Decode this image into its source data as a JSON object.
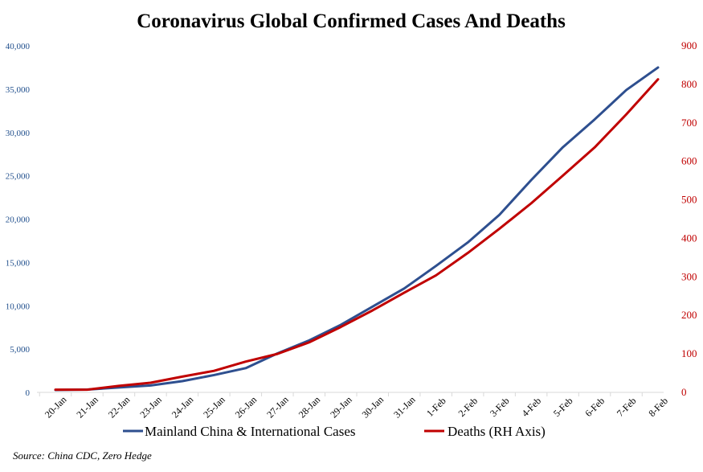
{
  "chart_data": {
    "type": "line",
    "title": "Coronavirus Global Confirmed Cases And Deaths",
    "categories": [
      "20-Jan",
      "21-Jan",
      "22-Jan",
      "23-Jan",
      "24-Jan",
      "25-Jan",
      "26-Jan",
      "27-Jan",
      "28-Jan",
      "29-Jan",
      "30-Jan",
      "31-Jan",
      "1-Feb",
      "2-Feb",
      "3-Feb",
      "4-Feb",
      "5-Feb",
      "6-Feb",
      "7-Feb",
      "8-Feb"
    ],
    "series": [
      {
        "name": "Mainland China & International Cases",
        "axis": "left",
        "color": "#2e4f8f",
        "values": [
          280,
          320,
          570,
          800,
          1300,
          2000,
          2800,
          4500,
          6000,
          7800,
          9900,
          12000,
          14600,
          17300,
          20500,
          24500,
          28300,
          31500,
          34900,
          37500
        ]
      },
      {
        "name": "Deaths (RH Axis)",
        "axis": "right",
        "color": "#c00000",
        "values": [
          7,
          7,
          17,
          25,
          41,
          56,
          80,
          100,
          130,
          170,
          213,
          259,
          304,
          362,
          425,
          491,
          563,
          636,
          722,
          813
        ]
      }
    ],
    "y_left": {
      "ylim": [
        0,
        40000
      ],
      "ticks": [
        "0",
        "5,000",
        "10,000",
        "15,000",
        "20,000",
        "25,000",
        "30,000",
        "35,000",
        "40,000"
      ]
    },
    "y_right": {
      "ylim": [
        0,
        900
      ],
      "ticks": [
        "0",
        "100",
        "200",
        "300",
        "400",
        "500",
        "600",
        "700",
        "800",
        "900"
      ]
    },
    "grid": false,
    "legend_placement": "bottom",
    "source": "Source: China CDC, Zero Hedge"
  },
  "colors": {
    "cases": "#2e4f8f",
    "deaths": "#c00000",
    "left_axis_text": "#1f4e8c",
    "right_axis_text": "#c00000"
  }
}
